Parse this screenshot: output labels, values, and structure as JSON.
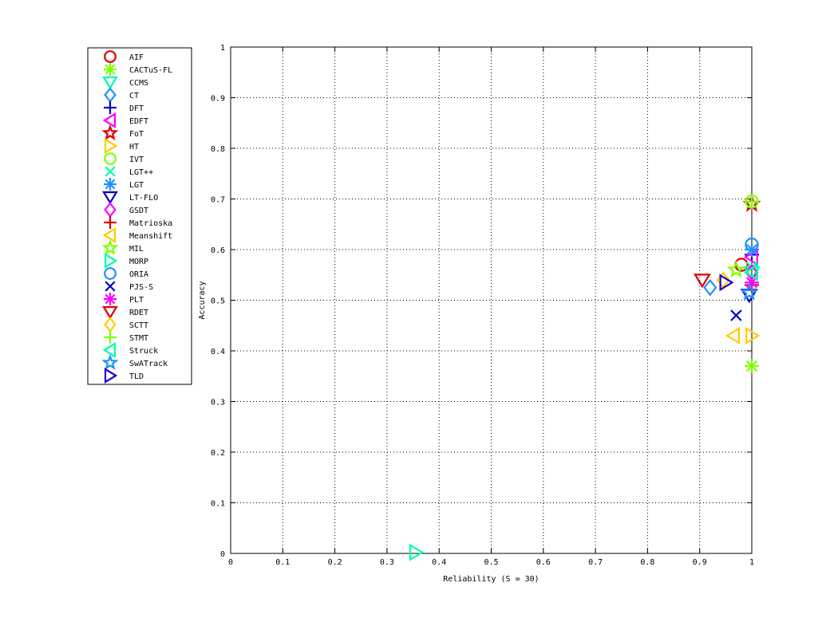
{
  "chart_data": {
    "type": "scatter",
    "xlabel": "Reliability (S = 30)",
    "ylabel": "Accuracy",
    "xlim": [
      0,
      1
    ],
    "ylim": [
      0,
      1
    ],
    "x_ticks": [
      "0",
      "0.1",
      "0.2",
      "0.3",
      "0.4",
      "0.5",
      "0.6",
      "0.7",
      "0.8",
      "0.9",
      "1"
    ],
    "y_ticks": [
      "0",
      "0.1",
      "0.2",
      "0.3",
      "0.4",
      "0.5",
      "0.6",
      "0.7",
      "0.8",
      "0.9",
      "1"
    ],
    "grid": true,
    "legend_position": "outside-left",
    "series": [
      {
        "name": "AIF",
        "marker": "circle",
        "color": "#dd0000",
        "points": [
          [
            0.98,
            0.57
          ]
        ]
      },
      {
        "name": "CACTuS-FL",
        "marker": "asterisk",
        "color": "#7fff00",
        "points": [
          [
            1.0,
            0.37
          ]
        ]
      },
      {
        "name": "CCMS",
        "marker": "triangle-down",
        "color": "#00ffaa",
        "points": [
          [
            1.0,
            0.555
          ]
        ]
      },
      {
        "name": "CT",
        "marker": "diamond",
        "color": "#1e90ff",
        "points": [
          [
            0.92,
            0.525
          ]
        ]
      },
      {
        "name": "DFT",
        "marker": "plus",
        "color": "#0000cc",
        "points": [
          [
            1.0,
            0.59
          ]
        ]
      },
      {
        "name": "EDFT",
        "marker": "triangle-left",
        "color": "#ff00ff",
        "points": [
          [
            1.0,
            0.585
          ]
        ]
      },
      {
        "name": "FoT",
        "marker": "pentagram",
        "color": "#dd0000",
        "points": [
          [
            1.0,
            0.69
          ]
        ]
      },
      {
        "name": "HT",
        "marker": "triangle-right",
        "color": "#ffcc00",
        "points": [
          [
            1.0,
            0.43
          ]
        ]
      },
      {
        "name": "IVT",
        "marker": "circle",
        "color": "#7fff00",
        "points": [
          [
            1.0,
            0.695
          ]
        ]
      },
      {
        "name": "LGT++",
        "marker": "x",
        "color": "#00ffaa",
        "points": [
          [
            1.0,
            0.565
          ]
        ]
      },
      {
        "name": "LGT",
        "marker": "asterisk",
        "color": "#1e90ff",
        "points": [
          [
            1.0,
            0.6
          ]
        ]
      },
      {
        "name": "LT-FLO",
        "marker": "triangle-down",
        "color": "#0000cc",
        "points": [
          [
            0.995,
            0.51
          ]
        ]
      },
      {
        "name": "GSDT",
        "marker": "diamond",
        "color": "#ff00ff",
        "points": [
          [
            1.0,
            0.555
          ]
        ]
      },
      {
        "name": "Matrioska",
        "marker": "plus",
        "color": "#dd0000",
        "points": [
          [
            1.0,
            0.53
          ]
        ]
      },
      {
        "name": "Meanshift",
        "marker": "triangle-left",
        "color": "#ffcc00",
        "points": [
          [
            0.965,
            0.43
          ]
        ]
      },
      {
        "name": "MIL",
        "marker": "pentagram",
        "color": "#7fff00",
        "points": [
          [
            0.97,
            0.56
          ]
        ]
      },
      {
        "name": "MORP",
        "marker": "triangle-right",
        "color": "#00ffaa",
        "points": [
          [
            0.355,
            0.002
          ]
        ]
      },
      {
        "name": "ORIA",
        "marker": "circle",
        "color": "#1e90ff",
        "points": [
          [
            1.0,
            0.61
          ]
        ]
      },
      {
        "name": "PJS-S",
        "marker": "x",
        "color": "#0000cc",
        "points": [
          [
            0.97,
            0.47
          ]
        ]
      },
      {
        "name": "PLT",
        "marker": "asterisk",
        "color": "#ff00ff",
        "points": [
          [
            1.0,
            0.535
          ]
        ]
      },
      {
        "name": "RDET",
        "marker": "triangle-down",
        "color": "#dd0000",
        "points": [
          [
            0.905,
            0.54
          ]
        ]
      },
      {
        "name": "SCTT",
        "marker": "diamond",
        "color": "#ffcc00",
        "points": [
          [
            0.945,
            0.54
          ]
        ]
      },
      {
        "name": "STMT",
        "marker": "plus",
        "color": "#7fff00",
        "points": [
          [
            1.0,
            0.695
          ]
        ]
      },
      {
        "name": "Struck",
        "marker": "triangle-left",
        "color": "#00ffaa",
        "points": [
          [
            1.0,
            0.555
          ]
        ]
      },
      {
        "name": "SwATrack",
        "marker": "pentagram",
        "color": "#1e90ff",
        "points": [
          [
            0.995,
            0.515
          ]
        ]
      },
      {
        "name": "TLD",
        "marker": "triangle-right",
        "color": "#2200cc",
        "points": [
          [
            0.95,
            0.535
          ]
        ]
      }
    ]
  }
}
